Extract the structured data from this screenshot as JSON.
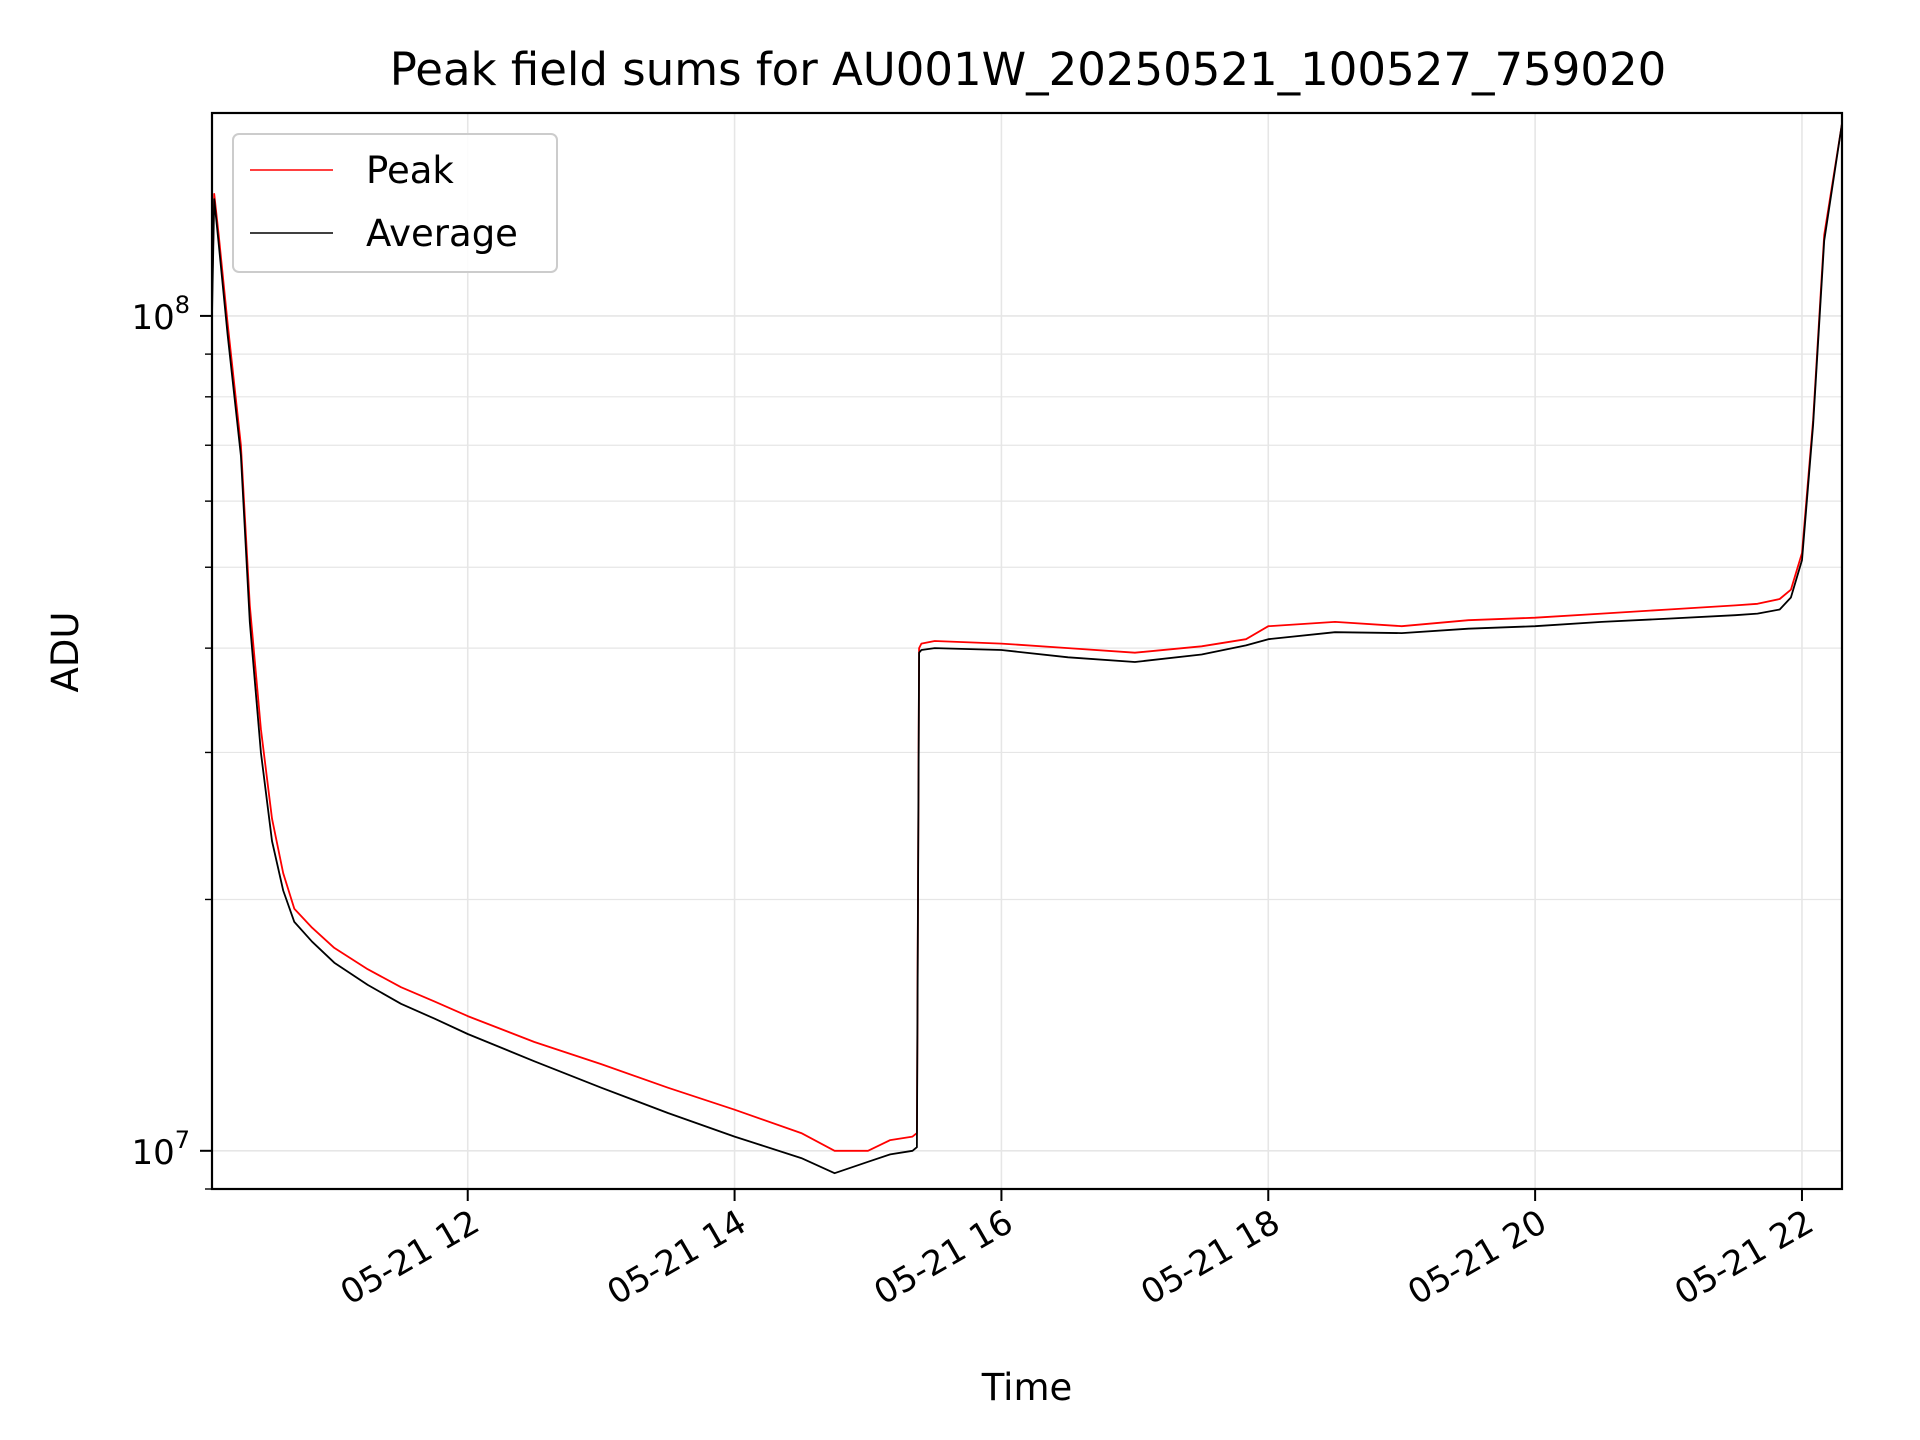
{
  "chart_data": {
    "type": "line",
    "title": "Peak field sums for AU001W_20250521_100527_759020",
    "xlabel": "Time",
    "ylabel": "ADU",
    "yscale": "log",
    "xlim": [
      "2025-05-21 10:05",
      "2025-05-21 22:18"
    ],
    "ylim": [
      9000000,
      175000000
    ],
    "x_ticks": [
      "05-21 12",
      "05-21 14",
      "05-21 16",
      "05-21 18",
      "05-21 20",
      "05-21 22"
    ],
    "x_tick_values": [
      "2025-05-21 12:00",
      "2025-05-21 14:00",
      "2025-05-21 16:00",
      "2025-05-21 18:00",
      "2025-05-21 20:00",
      "2025-05-21 22:00"
    ],
    "y_ticks": [
      {
        "base": "10",
        "exp": "7",
        "value": 10000000
      },
      {
        "base": "10",
        "exp": "8",
        "value": 100000000
      }
    ],
    "grid": true,
    "legend": "top-left",
    "series": [
      {
        "name": "Peak",
        "color": "#ff0000",
        "x": [
          "2025-05-21 10:05",
          "2025-05-21 10:06",
          "2025-05-21 10:08",
          "2025-05-21 10:12",
          "2025-05-21 10:18",
          "2025-05-21 10:22",
          "2025-05-21 10:27",
          "2025-05-21 10:32",
          "2025-05-21 10:37",
          "2025-05-21 10:42",
          "2025-05-21 10:50",
          "2025-05-21 11:00",
          "2025-05-21 11:15",
          "2025-05-21 11:30",
          "2025-05-21 11:45",
          "2025-05-21 12:00",
          "2025-05-21 12:30",
          "2025-05-21 13:00",
          "2025-05-21 13:30",
          "2025-05-21 14:00",
          "2025-05-21 14:30",
          "2025-05-21 14:45",
          "2025-05-21 15:00",
          "2025-05-21 15:10",
          "2025-05-21 15:20",
          "2025-05-21 15:22",
          "2025-05-21 15:23",
          "2025-05-21 15:24",
          "2025-05-21 15:30",
          "2025-05-21 16:00",
          "2025-05-21 16:30",
          "2025-05-21 17:00",
          "2025-05-21 17:30",
          "2025-05-21 17:50",
          "2025-05-21 18:00",
          "2025-05-21 18:30",
          "2025-05-21 19:00",
          "2025-05-21 19:30",
          "2025-05-21 20:00",
          "2025-05-21 20:30",
          "2025-05-21 21:00",
          "2025-05-21 21:30",
          "2025-05-21 21:40",
          "2025-05-21 21:50",
          "2025-05-21 21:55",
          "2025-05-21 22:00",
          "2025-05-21 22:05",
          "2025-05-21 22:10",
          "2025-05-21 22:18"
        ],
        "y": [
          105000000,
          140000000,
          125000000,
          98000000,
          70000000,
          45000000,
          32000000,
          25000000,
          21500000,
          19500000,
          18500000,
          17500000,
          16500000,
          15700000,
          15100000,
          14500000,
          13500000,
          12700000,
          11900000,
          11200000,
          10500000,
          10000000,
          10000000,
          10300000,
          10400000,
          10500000,
          40000000,
          40500000,
          40800000,
          40500000,
          40000000,
          39500000,
          40200000,
          41000000,
          42500000,
          43000000,
          42500000,
          43200000,
          43500000,
          44000000,
          44500000,
          45000000,
          45200000,
          45800000,
          47000000,
          52000000,
          75000000,
          125000000,
          170000000
        ]
      },
      {
        "name": "Average",
        "color": "#000000",
        "x": [
          "2025-05-21 10:05",
          "2025-05-21 10:06",
          "2025-05-21 10:08",
          "2025-05-21 10:12",
          "2025-05-21 10:18",
          "2025-05-21 10:22",
          "2025-05-21 10:27",
          "2025-05-21 10:32",
          "2025-05-21 10:37",
          "2025-05-21 10:42",
          "2025-05-21 10:50",
          "2025-05-21 11:00",
          "2025-05-21 11:15",
          "2025-05-21 11:30",
          "2025-05-21 11:45",
          "2025-05-21 12:00",
          "2025-05-21 12:30",
          "2025-05-21 13:00",
          "2025-05-21 13:30",
          "2025-05-21 14:00",
          "2025-05-21 14:30",
          "2025-05-21 14:45",
          "2025-05-21 15:00",
          "2025-05-21 15:10",
          "2025-05-21 15:20",
          "2025-05-21 15:22",
          "2025-05-21 15:23",
          "2025-05-21 15:24",
          "2025-05-21 15:30",
          "2025-05-21 16:00",
          "2025-05-21 16:30",
          "2025-05-21 17:00",
          "2025-05-21 17:30",
          "2025-05-21 17:50",
          "2025-05-21 18:00",
          "2025-05-21 18:30",
          "2025-05-21 19:00",
          "2025-05-21 19:30",
          "2025-05-21 20:00",
          "2025-05-21 20:30",
          "2025-05-21 21:00",
          "2025-05-21 21:30",
          "2025-05-21 21:40",
          "2025-05-21 21:50",
          "2025-05-21 21:55",
          "2025-05-21 22:00",
          "2025-05-21 22:05",
          "2025-05-21 22:10",
          "2025-05-21 22:18"
        ],
        "y": [
          100000000,
          138000000,
          122000000,
          95000000,
          68000000,
          43000000,
          30000000,
          23500000,
          20500000,
          18800000,
          17800000,
          16800000,
          15800000,
          15000000,
          14400000,
          13800000,
          12800000,
          11900000,
          11100000,
          10400000,
          9800000,
          9400000,
          9700000,
          9900000,
          10000000,
          10100000,
          39500000,
          39800000,
          40000000,
          39800000,
          39000000,
          38500000,
          39300000,
          40300000,
          41000000,
          41800000,
          41700000,
          42200000,
          42500000,
          43000000,
          43400000,
          43800000,
          44000000,
          44500000,
          46000000,
          51000000,
          74000000,
          123000000,
          170000000
        ]
      }
    ]
  }
}
